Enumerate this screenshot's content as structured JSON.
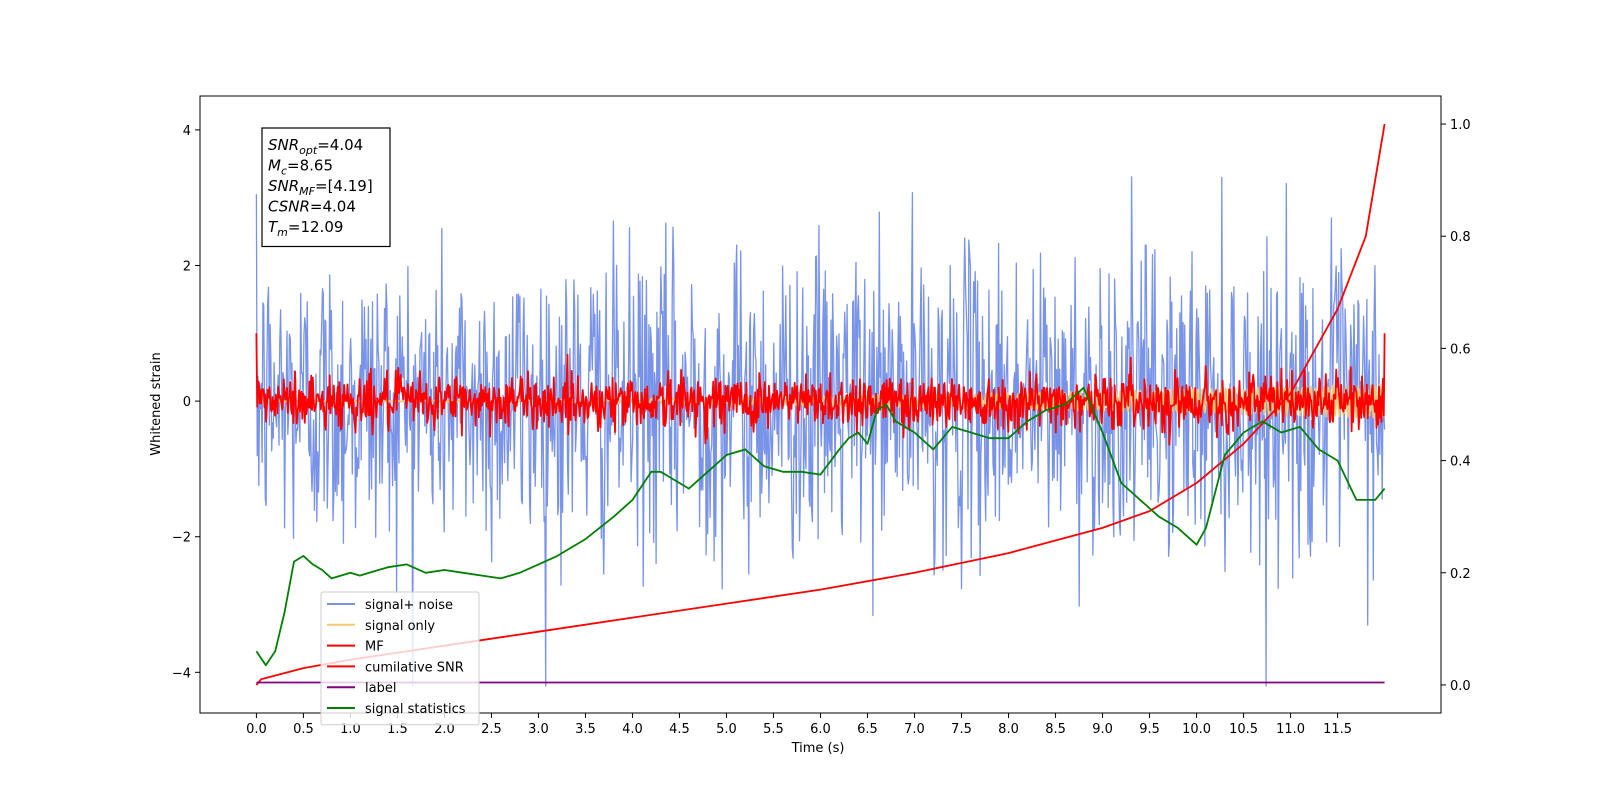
{
  "chart_data": {
    "type": "line",
    "title": "",
    "xlabel": "Time (s)",
    "ylabel": "Whitened strain",
    "xlim": [
      -0.6,
      12.6
    ],
    "ylim": [
      -4.6,
      4.5
    ],
    "y2lim": [
      -0.05,
      1.05
    ],
    "x_ticks": [
      0.0,
      0.5,
      1.0,
      1.5,
      2.0,
      2.5,
      3.0,
      3.5,
      4.0,
      4.5,
      5.0,
      5.5,
      6.0,
      6.5,
      7.0,
      7.5,
      8.0,
      8.5,
      9.0,
      9.5,
      10.0,
      10.5,
      11.0,
      11.5
    ],
    "x_tick_labels": [
      "0.0",
      "0.5",
      "1.0",
      "1.5",
      "2.0",
      "2.5",
      "3.0",
      "3.5",
      "4.0",
      "4.5",
      "5.0",
      "5.5",
      "6.0",
      "6.5",
      "7.0",
      "7.5",
      "8.0",
      "8.5",
      "9.0",
      "9.5",
      "10.0",
      "10.5",
      "11.0",
      "11.5"
    ],
    "y_ticks": [
      -4,
      -2,
      0,
      2,
      4
    ],
    "y_tick_labels": [
      "−4",
      "−2",
      "0",
      "2",
      "4"
    ],
    "y2_ticks": [
      0.0,
      0.2,
      0.4,
      0.6,
      0.8,
      1.0
    ],
    "y2_tick_labels": [
      "0.0",
      "0.2",
      "0.4",
      "0.6",
      "0.8",
      "1.0"
    ],
    "x_end": 12.0,
    "grid": false,
    "legend_position": "lower-left",
    "series": [
      {
        "name": "signal+ noise",
        "axis": "left",
        "color": "#7893e8",
        "kind": "noise",
        "amplitude": 1.1,
        "typical_range": [
          -3.5,
          3.5
        ]
      },
      {
        "name": "signal only",
        "axis": "left",
        "color": "#f5c86e",
        "kind": "chirp",
        "amplitude_end": 0.25
      },
      {
        "name": "MF",
        "axis": "left",
        "color": "#ff0000",
        "kind": "noise",
        "amplitude": 0.2,
        "start_value": 1.0,
        "end_value": 1.0
      },
      {
        "name": "cumilative SNR",
        "axis": "right",
        "color": "#ff0000",
        "x": [
          0.0,
          0.05,
          0.5,
          1.0,
          2.0,
          3.0,
          4.0,
          5.0,
          6.0,
          7.0,
          8.0,
          9.0,
          9.5,
          10.0,
          10.5,
          11.0,
          11.5,
          11.8,
          12.0
        ],
        "values": [
          0.0,
          0.01,
          0.03,
          0.045,
          0.07,
          0.095,
          0.12,
          0.145,
          0.17,
          0.2,
          0.235,
          0.28,
          0.31,
          0.36,
          0.43,
          0.52,
          0.67,
          0.8,
          1.0
        ]
      },
      {
        "name": "label",
        "axis": "left",
        "color": "#800080",
        "x": [
          0.0,
          12.0
        ],
        "values": [
          -4.15,
          -4.15
        ]
      },
      {
        "name": "signal statistics",
        "axis": "right",
        "color": "#008000",
        "x": [
          0.0,
          0.1,
          0.2,
          0.3,
          0.4,
          0.5,
          0.6,
          0.7,
          0.8,
          1.0,
          1.1,
          1.2,
          1.4,
          1.6,
          1.8,
          2.0,
          2.2,
          2.4,
          2.6,
          2.8,
          3.0,
          3.2,
          3.5,
          3.8,
          4.0,
          4.2,
          4.3,
          4.4,
          4.6,
          4.8,
          5.0,
          5.2,
          5.4,
          5.6,
          5.8,
          6.0,
          6.2,
          6.3,
          6.4,
          6.5,
          6.6,
          6.7,
          6.8,
          7.0,
          7.2,
          7.4,
          7.6,
          7.8,
          8.0,
          8.2,
          8.4,
          8.6,
          8.8,
          9.0,
          9.2,
          9.4,
          9.6,
          9.8,
          10.0,
          10.1,
          10.3,
          10.5,
          10.7,
          10.9,
          11.1,
          11.3,
          11.5,
          11.7,
          11.9,
          12.0
        ],
        "values": [
          0.06,
          0.035,
          0.06,
          0.13,
          0.22,
          0.23,
          0.215,
          0.205,
          0.19,
          0.2,
          0.195,
          0.2,
          0.21,
          0.215,
          0.2,
          0.205,
          0.2,
          0.195,
          0.19,
          0.2,
          0.215,
          0.23,
          0.26,
          0.3,
          0.33,
          0.38,
          0.38,
          0.37,
          0.35,
          0.38,
          0.41,
          0.42,
          0.39,
          0.38,
          0.38,
          0.375,
          0.42,
          0.44,
          0.45,
          0.43,
          0.49,
          0.5,
          0.47,
          0.45,
          0.42,
          0.46,
          0.45,
          0.44,
          0.44,
          0.47,
          0.49,
          0.5,
          0.53,
          0.45,
          0.36,
          0.33,
          0.3,
          0.28,
          0.25,
          0.28,
          0.41,
          0.45,
          0.47,
          0.45,
          0.46,
          0.42,
          0.4,
          0.33,
          0.33,
          0.35
        ]
      }
    ]
  },
  "annotation": {
    "lines": [
      {
        "name": "SNR",
        "sub": "opt",
        "value": "=4.04"
      },
      {
        "name": "M",
        "sub": "c",
        "value": "=8.65"
      },
      {
        "name": "SNR",
        "sub": "MF",
        "value": "=[4.19]"
      },
      {
        "name": "CSNR",
        "sub": "",
        "value": "=4.04"
      },
      {
        "name": "T",
        "sub": "m",
        "value": "=12.09"
      }
    ]
  }
}
